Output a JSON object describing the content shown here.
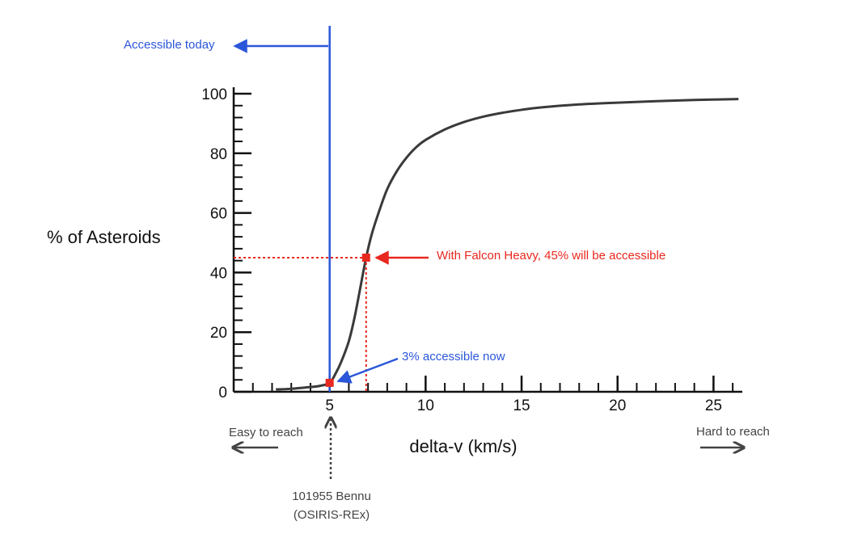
{
  "chart_data": {
    "type": "line",
    "xlabel": "delta-v (km/s)",
    "ylabel": "% of Asteroids",
    "xlim": [
      0,
      26.5
    ],
    "ylim": [
      0,
      100
    ],
    "x_ticks": [
      5,
      10,
      15,
      20,
      25
    ],
    "y_ticks": [
      0,
      20,
      40,
      60,
      80,
      100
    ],
    "x_minor_step": 1,
    "y_minor_step": 4,
    "grid": false,
    "series": [
      {
        "color": "#3a3a3a",
        "x": [
          2.2,
          3.0,
          4.0,
          4.5,
          5.0,
          5.3,
          5.6,
          6.0,
          6.3,
          6.6,
          6.9,
          7.2,
          7.6,
          8.0,
          8.5,
          9.0,
          9.5,
          10.0,
          11.0,
          12.0,
          13.0,
          14.0,
          15.0,
          16.0,
          18.0,
          20.0,
          22.0,
          24.0,
          26.3
        ],
        "y": [
          0.8,
          1.0,
          1.6,
          2.0,
          3.0,
          6.0,
          10.0,
          17.0,
          25.0,
          35.0,
          45.0,
          53.0,
          61.0,
          68.0,
          74.0,
          78.5,
          82.0,
          84.5,
          88.0,
          90.5,
          92.3,
          93.6,
          94.6,
          95.4,
          96.4,
          97.0,
          97.5,
          97.9,
          98.2
        ]
      }
    ],
    "markers": [
      {
        "x": 5,
        "y": 3,
        "color": "#e8281e"
      },
      {
        "x": 6.9,
        "y": 45,
        "color": "#e8281e"
      }
    ],
    "reference_lines": {
      "accessible_today_x": 5,
      "falcon_heavy_x": 6.9,
      "falcon_heavy_y": 45
    },
    "colors": {
      "blue": "#2a56d9",
      "red": "#e8281e",
      "gray": "#444444",
      "curve": "#3a3a3a"
    },
    "annotations": {
      "accessible_today": "Accessible today",
      "falcon_heavy": "With Falcon Heavy, 45% will be accessible",
      "accessible_now": "3% accessible now",
      "easy": "Easy to reach",
      "hard": "Hard to reach",
      "bennu_line1": "101955 Bennu",
      "bennu_line2": "(OSIRIS-REx)"
    }
  }
}
